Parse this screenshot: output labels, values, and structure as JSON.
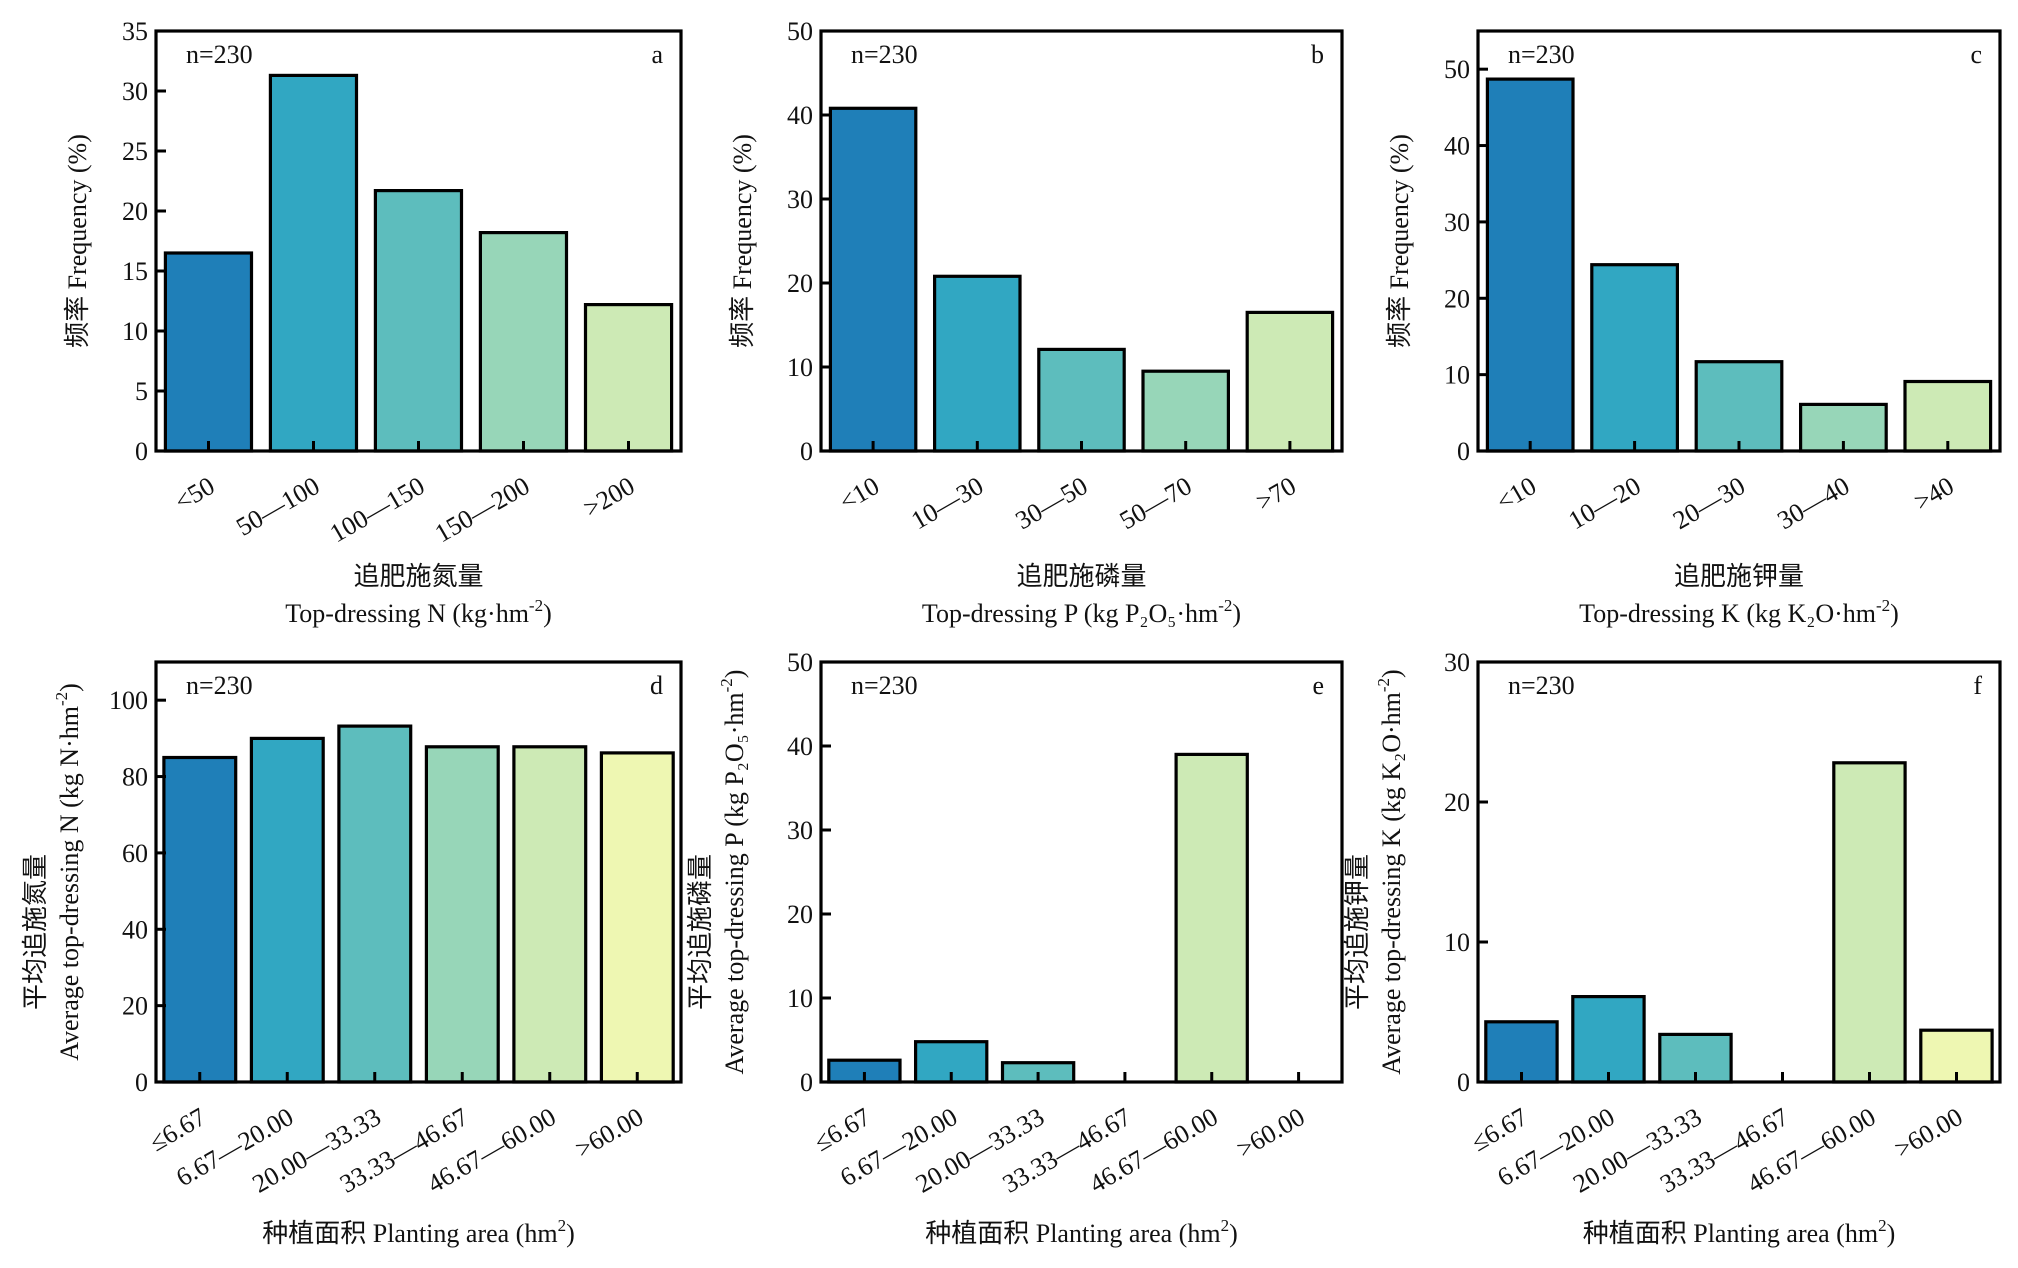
{
  "colors": {
    "bars": [
      "#1f7fb8",
      "#31a7c2",
      "#5dbdbd",
      "#97d6b8",
      "#cdeab5",
      "#eef7b2"
    ],
    "axis": "#000000"
  },
  "chart_data": [
    {
      "panel": "a",
      "type": "bar",
      "annotation": "n=230",
      "categories": [
        "<50",
        "50—100",
        "100—150",
        "150—200",
        ">200"
      ],
      "values": [
        16.5,
        31.3,
        21.7,
        18.2,
        12.2
      ],
      "ylim": [
        0,
        35
      ],
      "yticks": [
        0,
        5,
        10,
        15,
        20,
        25,
        30,
        35
      ],
      "ylabel": "频率 Frequency (%)",
      "xlabel_cn": "追肥施氮量",
      "xlabel_en": "Top-dressing N (kg·hm",
      "xlabel_sup": "-2",
      "xlabel_tail": ")"
    },
    {
      "panel": "b",
      "type": "bar",
      "annotation": "n=230",
      "categories": [
        "<10",
        "10—30",
        "30—50",
        "50—70",
        ">70"
      ],
      "values": [
        40.8,
        20.8,
        12.1,
        9.5,
        16.5
      ],
      "ylim": [
        0,
        50
      ],
      "yticks": [
        0,
        10,
        20,
        30,
        40,
        50
      ],
      "ylabel": "频率 Frequency (%)",
      "xlabel_cn": "追肥施磷量",
      "xlabel_en": "Top-dressing P (kg P₂O₅·hm",
      "xlabel_sup": "-2",
      "xlabel_tail": ")"
    },
    {
      "panel": "c",
      "type": "bar",
      "annotation": "n=230",
      "categories": [
        "<10",
        "10—20",
        "20—30",
        "30—40",
        ">40"
      ],
      "values": [
        48.7,
        24.4,
        11.7,
        6.1,
        9.1
      ],
      "ylim": [
        0,
        55
      ],
      "yticks": [
        0,
        10,
        20,
        30,
        40,
        50
      ],
      "ylabel": "频率 Frequency (%)",
      "xlabel_cn": "追肥施钾量",
      "xlabel_en": "Top-dressing K (kg K₂O·hm",
      "xlabel_sup": "-2",
      "xlabel_tail": ")"
    },
    {
      "panel": "d",
      "type": "bar",
      "annotation": "n=230",
      "categories": [
        "≤6.67",
        "6.67—20.00",
        "20.00—33.33",
        "33.33—46.67",
        "46.67—60.00",
        ">60.00"
      ],
      "values": [
        85.0,
        90.0,
        93.2,
        87.8,
        87.8,
        86.2
      ],
      "ylim": [
        0,
        110
      ],
      "yticks": [
        0,
        20,
        40,
        60,
        80,
        100
      ],
      "ylabel_cn": "平均追施氮量",
      "ylabel_en": "Average top-dressing N (kg N·hm",
      "ylabel_sup": "-2",
      "ylabel_tail": ")",
      "xlabel": "种植面积 Planting area (hm",
      "xlabel_sup": "2",
      "xlabel_tail": ")"
    },
    {
      "panel": "e",
      "type": "bar",
      "annotation": "n=230",
      "categories": [
        "≤6.67",
        "6.67—20.00",
        "20.00—33.33",
        "33.33—46.67",
        "46.67—60.00",
        ">60.00"
      ],
      "values": [
        2.6,
        4.8,
        2.3,
        0,
        39.0,
        0
      ],
      "ylim": [
        0,
        50
      ],
      "yticks": [
        0,
        10,
        20,
        30,
        40,
        50
      ],
      "ylabel_cn": "平均追施磷量",
      "ylabel_en": "Average top-dressing P (kg P₂O₅·hm",
      "ylabel_sup": "-2",
      "ylabel_tail": ")",
      "xlabel": "种植面积 Planting area (hm",
      "xlabel_sup": "2",
      "xlabel_tail": ")"
    },
    {
      "panel": "f",
      "type": "bar",
      "annotation": "n=230",
      "categories": [
        "≤6.67",
        "6.67—20.00",
        "20.00—33.33",
        "33.33—46.67",
        "46.67—60.00",
        ">60.00"
      ],
      "values": [
        4.3,
        6.1,
        3.4,
        0,
        22.8,
        3.7
      ],
      "ylim": [
        0,
        30
      ],
      "yticks": [
        0,
        10,
        20,
        30
      ],
      "ylabel_cn": "平均追施钾量",
      "ylabel_en": "Average top-dressing K (kg K₂O·hm",
      "ylabel_sup": "-2",
      "ylabel_tail": ")",
      "xlabel": "种植面积 Planting area (hm",
      "xlabel_sup": "2",
      "xlabel_tail": ")"
    }
  ]
}
